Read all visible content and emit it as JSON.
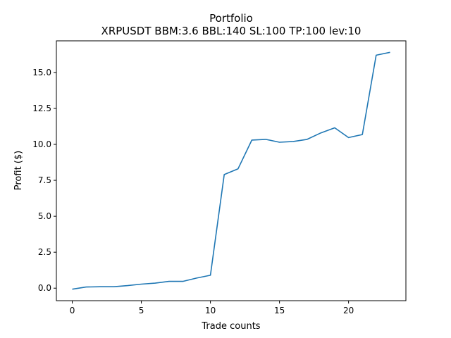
{
  "chart_data": {
    "type": "line",
    "title": "Portfolio",
    "subtitle": "XRPUSDT BBM:3.6 BBL:140 SL:100 TP:100 lev:10",
    "xlabel": "Trade counts",
    "ylabel": "Profit ($)",
    "xlim": [
      -1.15,
      24.15
    ],
    "ylim": [
      -0.87,
      17.2
    ],
    "xticks": [
      0,
      5,
      10,
      15,
      20
    ],
    "xtick_labels": [
      "0",
      "5",
      "10",
      "15",
      "20"
    ],
    "yticks": [
      0,
      2.5,
      5,
      7.5,
      10,
      12.5,
      15
    ],
    "ytick_labels": [
      "0.0",
      "2.5",
      "5.0",
      "7.5",
      "10.0",
      "12.5",
      "15.0"
    ],
    "grid": false,
    "legend": false,
    "series": [
      {
        "color": "#1f77b4",
        "x": [
          0,
          1,
          2,
          3,
          4,
          5,
          6,
          7,
          8,
          9,
          10,
          11,
          12,
          13,
          14,
          15,
          16,
          17,
          18,
          19,
          20,
          21,
          22,
          23
        ],
        "values": [
          -0.07,
          0.08,
          0.1,
          0.1,
          0.18,
          0.28,
          0.35,
          0.47,
          0.47,
          0.7,
          0.9,
          7.9,
          8.3,
          10.3,
          10.35,
          10.15,
          10.2,
          10.35,
          10.8,
          11.15,
          10.47,
          10.68,
          16.2,
          16.4
        ]
      }
    ]
  }
}
